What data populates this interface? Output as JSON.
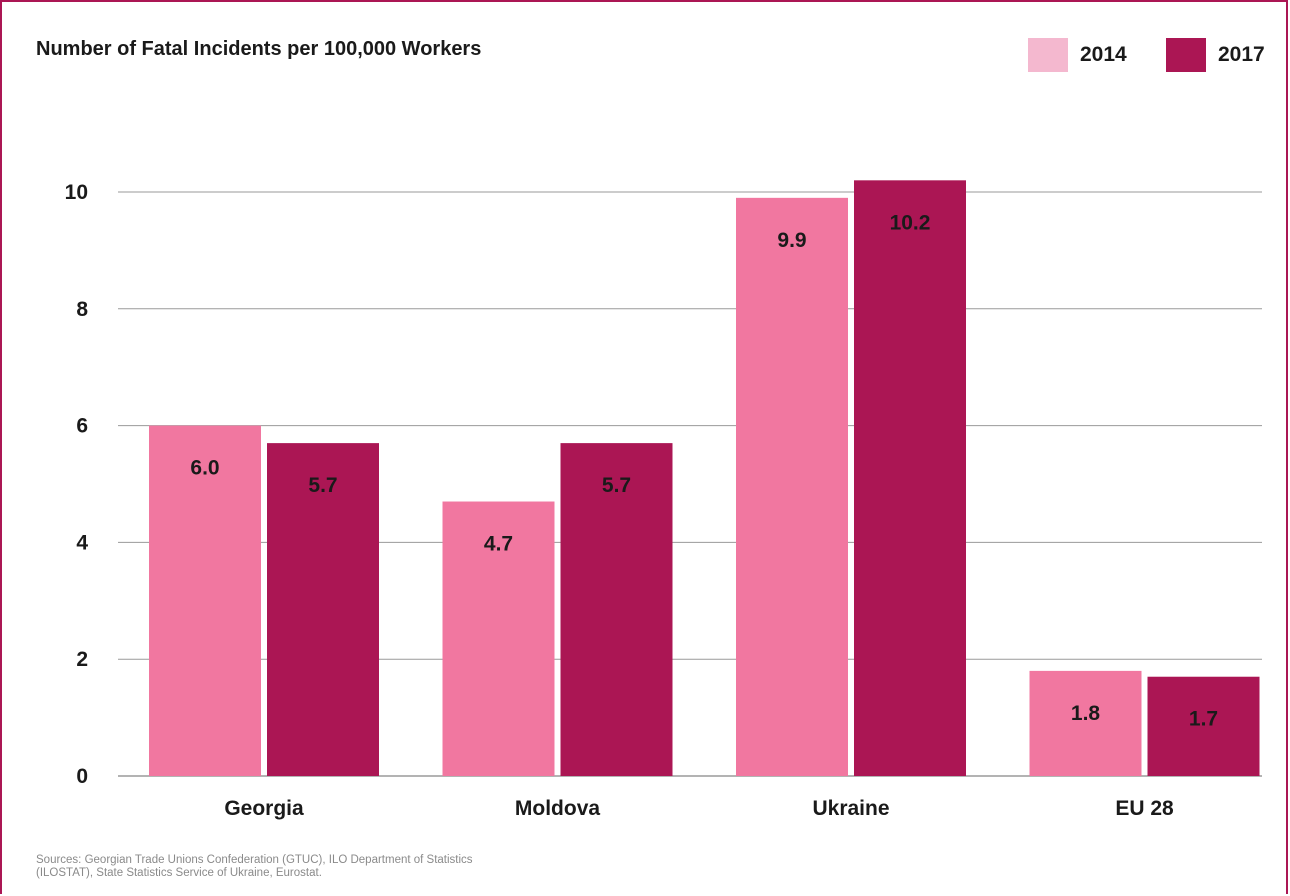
{
  "title": "Number of Fatal Incidents per 100,000 Workers",
  "legend": [
    {
      "label": "2014",
      "color": "#f4b8cf"
    },
    {
      "label": "2017",
      "color": "#ab1654"
    }
  ],
  "colors": {
    "bar_2014": "#f177a0",
    "bar_2017": "#ab1654",
    "grid": "#9a9a9a",
    "text": "#1a1a1a",
    "frame": "#ab1654"
  },
  "sources": {
    "line1": "Sources: Georgian Trade Unions Confederation (GTUC), ILO Department of Statistics",
    "line2": "(ILOSTAT), State Statistics Service of Ukraine, Eurostat."
  },
  "chart_data": {
    "type": "bar",
    "title": "Number of Fatal Incidents per 100,000 Workers",
    "categories": [
      "Georgia",
      "Moldova",
      "Ukraine",
      "EU 28"
    ],
    "series": [
      {
        "name": "2014",
        "values": [
          6.0,
          4.7,
          9.9,
          1.8
        ],
        "labels": [
          "6.0",
          "4.7",
          "9.9",
          "1.8"
        ]
      },
      {
        "name": "2017",
        "values": [
          5.7,
          5.7,
          10.2,
          1.7
        ],
        "labels": [
          "5.7",
          "5.7",
          "10.2",
          "1.7"
        ]
      }
    ],
    "yticks": [
      "0",
      "2",
      "4",
      "6",
      "8",
      "10"
    ],
    "ylim": [
      0,
      10
    ],
    "xlabel": "",
    "ylabel": "",
    "grid": true,
    "legend_position": "top-right"
  }
}
